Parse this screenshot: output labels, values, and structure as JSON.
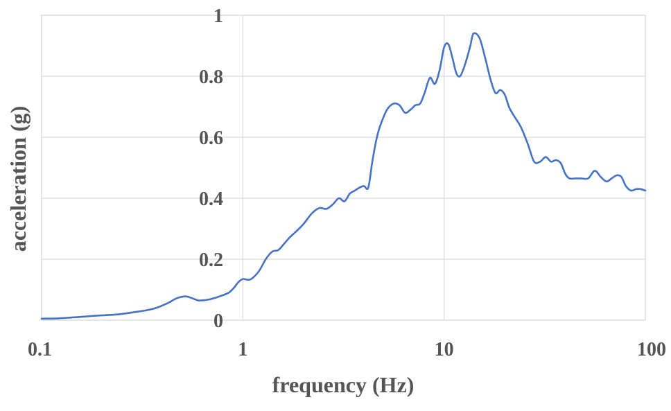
{
  "colors": {
    "series": "#4472C4",
    "grid": "#d9d9d9",
    "text": "#555555"
  },
  "chart_data": {
    "type": "line",
    "title": "",
    "xlabel": "frequency (Hz)",
    "ylabel": "acceleration (g)",
    "xscale": "log",
    "xlim": [
      0.1,
      100
    ],
    "ylim": [
      0,
      1
    ],
    "grid": true,
    "legend": "none",
    "xticks": [
      {
        "value": 0.1,
        "label": "0.1"
      },
      {
        "value": 1,
        "label": "1"
      },
      {
        "value": 10,
        "label": "10"
      },
      {
        "value": 100,
        "label": "100"
      }
    ],
    "yticks": [
      {
        "value": 0,
        "label": "0"
      },
      {
        "value": 0.2,
        "label": "0.2"
      },
      {
        "value": 0.4,
        "label": "0.4"
      },
      {
        "value": 0.6,
        "label": "0.6"
      },
      {
        "value": 0.8,
        "label": "0.8"
      },
      {
        "value": 1,
        "label": "1"
      }
    ],
    "series": [
      {
        "x": [
          0.1,
          0.12,
          0.15,
          0.18,
          0.2,
          0.23,
          0.26,
          0.3,
          0.33,
          0.37,
          0.42,
          0.47,
          0.52,
          0.56,
          0.6,
          0.65,
          0.7,
          0.78,
          0.85,
          0.9,
          0.95,
          1.0,
          1.05,
          1.1,
          1.2,
          1.3,
          1.4,
          1.5,
          1.6,
          1.7,
          1.8,
          2.0,
          2.2,
          2.4,
          2.6,
          2.8,
          3.0,
          3.2,
          3.4,
          3.6,
          3.8,
          4.0,
          4.2,
          4.4,
          4.6,
          4.8,
          5.2,
          5.6,
          6.0,
          6.4,
          6.8,
          7.2,
          7.6,
          8.0,
          8.5,
          9.0,
          9.5,
          10.0,
          10.5,
          11.0,
          11.5,
          12.0,
          12.5,
          13.0,
          13.5,
          14.0,
          15.0,
          16.0,
          17.0,
          18.0,
          19.0,
          20.0,
          21.0,
          22.0,
          24.0,
          26.0,
          28.0,
          30.0,
          32.0,
          34.0,
          36.0,
          38.0,
          40.0,
          42.0,
          45.0,
          48.0,
          52.0,
          56.0,
          60.0,
          64.0,
          68.0,
          72.0,
          76.0,
          80.0,
          85.0,
          90.0,
          95.0,
          100.0
        ],
        "y": [
          0.005,
          0.006,
          0.01,
          0.014,
          0.016,
          0.018,
          0.022,
          0.028,
          0.032,
          0.04,
          0.055,
          0.072,
          0.078,
          0.072,
          0.065,
          0.066,
          0.07,
          0.08,
          0.09,
          0.105,
          0.125,
          0.135,
          0.133,
          0.135,
          0.16,
          0.2,
          0.225,
          0.23,
          0.25,
          0.27,
          0.285,
          0.315,
          0.35,
          0.368,
          0.365,
          0.38,
          0.4,
          0.39,
          0.415,
          0.425,
          0.435,
          0.44,
          0.435,
          0.52,
          0.59,
          0.635,
          0.69,
          0.71,
          0.705,
          0.68,
          0.69,
          0.705,
          0.71,
          0.745,
          0.795,
          0.775,
          0.82,
          0.895,
          0.905,
          0.86,
          0.81,
          0.8,
          0.825,
          0.86,
          0.9,
          0.94,
          0.925,
          0.86,
          0.79,
          0.745,
          0.755,
          0.74,
          0.7,
          0.675,
          0.635,
          0.58,
          0.52,
          0.52,
          0.535,
          0.52,
          0.525,
          0.515,
          0.48,
          0.465,
          0.465,
          0.465,
          0.465,
          0.49,
          0.47,
          0.455,
          0.465,
          0.475,
          0.47,
          0.44,
          0.425,
          0.43,
          0.43,
          0.425
        ]
      }
    ]
  }
}
